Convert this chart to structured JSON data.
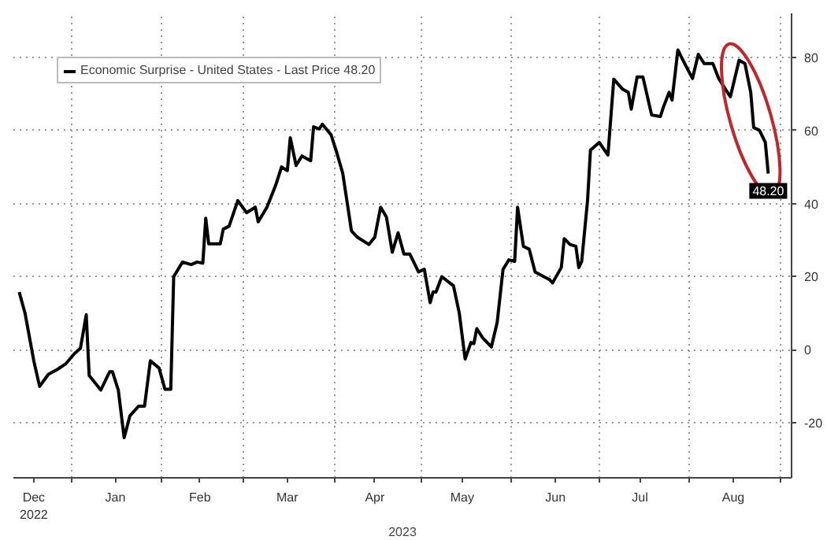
{
  "chart_data": {
    "type": "line",
    "xlabel": "2023",
    "legend": "top left",
    "grid": true,
    "marker": "none",
    "line_style": "solid",
    "xlim": [
      "2022-12-12",
      "2023-09-05"
    ],
    "ylim": [
      -35,
      92
    ],
    "yticks": [
      -20,
      0,
      20,
      40,
      60,
      80
    ],
    "xticks": [
      {
        "value": "2023-01-01",
        "label": null
      },
      {
        "value": "2023-02-01",
        "label": null
      },
      {
        "value": "2023-03-01",
        "label": null
      },
      {
        "value": "2023-04-01",
        "label": null
      },
      {
        "value": "2023-05-01",
        "label": null
      },
      {
        "value": "2023-06-01",
        "label": null
      },
      {
        "value": "2023-07-01",
        "label": null
      },
      {
        "value": "2023-08-01",
        "label": null
      },
      {
        "value": "2023-09-01",
        "label": null
      },
      {
        "value": "2022-12-19",
        "label": "Dec\n2022"
      },
      {
        "value": "2023-01-16",
        "label": "Jan"
      },
      {
        "value": "2023-02-14",
        "label": "Feb"
      },
      {
        "value": "2023-03-16",
        "label": "Mar"
      },
      {
        "value": "2023-04-15",
        "label": "Apr"
      },
      {
        "value": "2023-05-15",
        "label": "May"
      },
      {
        "value": "2023-06-16",
        "label": "Jun"
      },
      {
        "value": "2023-07-15",
        "label": "Jul"
      },
      {
        "value": "2023-08-16",
        "label": "Aug"
      }
    ],
    "annotations": [
      {
        "text": "48.20",
        "x": "2023-08-28",
        "y": 48.2
      }
    ],
    "series": [
      {
        "name": "Economic Surprise - United States - Last Price 48.20",
        "color": "#000000",
        "x": [
          "2022-12-14",
          "2022-12-16",
          "2022-12-19",
          "2022-12-21",
          "2022-12-24",
          "2022-12-27",
          "2022-12-30",
          "2023-01-02",
          "2023-01-04",
          "2023-01-06",
          "2023-01-07",
          "2023-01-11",
          "2023-01-14",
          "2023-01-15",
          "2023-01-17",
          "2023-01-19",
          "2023-01-21",
          "2023-01-24",
          "2023-01-26",
          "2023-01-28",
          "2023-01-31",
          "2023-02-02",
          "2023-02-04",
          "2023-02-05",
          "2023-02-08",
          "2023-02-11",
          "2023-02-13",
          "2023-02-15",
          "2023-02-16",
          "2023-02-17",
          "2023-02-21",
          "2023-02-22",
          "2023-02-24",
          "2023-02-27",
          "2023-03-02",
          "2023-03-05",
          "2023-03-06",
          "2023-03-09",
          "2023-03-12",
          "2023-03-14",
          "2023-03-16",
          "2023-03-17",
          "2023-03-19",
          "2023-03-21",
          "2023-03-24",
          "2023-03-25",
          "2023-03-27",
          "2023-03-28",
          "2023-03-31",
          "2023-04-02",
          "2023-04-04",
          "2023-04-07",
          "2023-04-09",
          "2023-04-13",
          "2023-04-15",
          "2023-04-17",
          "2023-04-19",
          "2023-04-21",
          "2023-04-23",
          "2023-04-25",
          "2023-04-27",
          "2023-04-30",
          "2023-05-02",
          "2023-05-04",
          "2023-05-05",
          "2023-05-06",
          "2023-05-08",
          "2023-05-12",
          "2023-05-14",
          "2023-05-16",
          "2023-05-18",
          "2023-05-19",
          "2023-05-20",
          "2023-05-22",
          "2023-05-25",
          "2023-05-27",
          "2023-05-29",
          "2023-05-31",
          "2023-06-02",
          "2023-06-03",
          "2023-06-05",
          "2023-06-07",
          "2023-06-09",
          "2023-06-12",
          "2023-06-14",
          "2023-06-15",
          "2023-06-18",
          "2023-06-19",
          "2023-06-21",
          "2023-06-23",
          "2023-06-24",
          "2023-06-25",
          "2023-06-27",
          "2023-06-28",
          "2023-07-01",
          "2023-07-04",
          "2023-07-06",
          "2023-07-09",
          "2023-07-11",
          "2023-07-12",
          "2023-07-14",
          "2023-07-16",
          "2023-07-19",
          "2023-07-22",
          "2023-07-23",
          "2023-07-25",
          "2023-07-26",
          "2023-07-28",
          "2023-07-30",
          "2023-08-02",
          "2023-08-04",
          "2023-08-06",
          "2023-08-09",
          "2023-08-11",
          "2023-08-14",
          "2023-08-15",
          "2023-08-18",
          "2023-08-20",
          "2023-08-22",
          "2023-08-23",
          "2023-08-25",
          "2023-08-27",
          "2023-08-28"
        ],
        "values": [
          15.8,
          10,
          -3,
          -10,
          -6.7,
          -5.4,
          -3.8,
          -1,
          0.4,
          9.6,
          -7,
          -11,
          -6,
          -6,
          -11,
          -24,
          -18,
          -15.4,
          -15.4,
          -3,
          -5,
          -10.8,
          -10.8,
          20,
          24,
          23.3,
          24,
          23.7,
          36,
          29,
          29,
          33,
          33.8,
          40.8,
          37.5,
          39,
          35,
          39,
          45,
          50,
          49,
          58,
          50.4,
          53,
          51.7,
          61,
          60.4,
          61.7,
          58.8,
          53.8,
          48.3,
          32.5,
          30.8,
          28.8,
          30.8,
          39,
          36.3,
          26.7,
          32,
          26.2,
          26.2,
          21.3,
          22,
          12.9,
          15.8,
          15.8,
          20,
          17.5,
          10,
          -2.5,
          2,
          1.7,
          5.8,
          3.3,
          0.8,
          7.5,
          22,
          24.6,
          24.2,
          39,
          28.3,
          27.5,
          21.3,
          20,
          19.2,
          18.3,
          22.5,
          30.4,
          28.8,
          28.3,
          22.5,
          24.2,
          40.8,
          54.6,
          56.7,
          53.3,
          74,
          71.3,
          70.4,
          65.8,
          74.6,
          74.6,
          64.2,
          63.8,
          66.3,
          70.4,
          68.3,
          82,
          78.8,
          74.2,
          80.8,
          78.3,
          78.3,
          74.2,
          70.4,
          69.2,
          79.2,
          78.3,
          70.4,
          60.8,
          60,
          56.7,
          48.2
        ]
      }
    ]
  }
}
